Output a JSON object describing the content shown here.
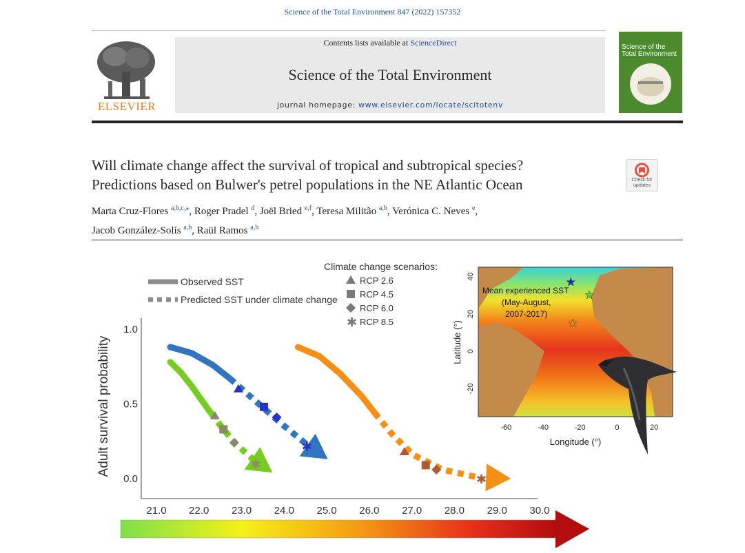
{
  "header": {
    "citation": "Science of the Total Environment 847 (2022) 157352",
    "contents_prefix": "Contents lists available at ",
    "contents_link": "ScienceDirect",
    "journal_title": "Science of the Total Environment",
    "homepage_prefix": "journal homepage: ",
    "homepage_url": "www.elsevier.com/locate/scitotenv",
    "publisher": "ELSEVIER",
    "cover_title": "Science of the Total Environment"
  },
  "article": {
    "title_line1": "Will climate change affect the survival of tropical and subtropical species?",
    "title_line2": "Predictions based on Bulwer's petrel populations in the NE Atlantic Ocean",
    "check_updates": "Check for updates",
    "authors": [
      {
        "name": "Marta Cruz-Flores",
        "aff": "a,b,c,⁎",
        "sep": ", "
      },
      {
        "name": "Roger Pradel",
        "aff": "d",
        "sep": ", "
      },
      {
        "name": "Joël Bried",
        "aff": "e,f",
        "sep": ", "
      },
      {
        "name": "Teresa Militão",
        "aff": "a,b",
        "sep": ", "
      },
      {
        "name": "Verónica C. Neves",
        "aff": "e",
        "sep": ","
      },
      {
        "name": "Jacob González-Solís",
        "aff": "a,b",
        "sep": ", "
      },
      {
        "name": "Raül Ramos",
        "aff": "a,b",
        "sep": ""
      }
    ]
  },
  "chart_data": [
    {
      "type": "line",
      "ylabel": "Adult survival probability",
      "xlabel": "",
      "xlim": [
        21.0,
        30.0
      ],
      "ylim": [
        0.0,
        1.0
      ],
      "x_ticks": [
        "21.0",
        "22.0",
        "23.0",
        "24.0",
        "25.0",
        "26.0",
        "27.0",
        "28.0",
        "29.0",
        "30.0"
      ],
      "y_ticks": [
        "0.0",
        "0.5",
        "1.0"
      ],
      "legend_line": {
        "observed": "Observed SST",
        "predicted": "Predicted SST under climate change"
      },
      "legend_title": "Climate change scenarios:",
      "scenarios": [
        "RCP 2.6",
        "RCP 4.5",
        "RCP 6.0",
        "RCP 8.5"
      ],
      "series": [
        {
          "color": "#77cc22",
          "observed": [
            [
              21.6,
              0.78
            ],
            [
              21.85,
              0.71
            ],
            [
              22.1,
              0.62
            ],
            [
              22.35,
              0.52
            ],
            [
              22.55,
              0.44
            ]
          ],
          "predicted": [
            [
              22.55,
              0.44
            ],
            [
              22.85,
              0.33
            ],
            [
              23.15,
              0.23
            ],
            [
              23.5,
              0.14
            ],
            [
              23.8,
              0.08
            ]
          ],
          "markers": {
            "RCP 2.6": [
              22.65,
              0.42
            ],
            "RCP 4.5": [
              22.85,
              0.33
            ],
            "RCP 6.0": [
              23.1,
              0.24
            ],
            "RCP 8.5": [
              23.6,
              0.1
            ]
          },
          "arrow_head": [
            24.0,
            0.04
          ]
        },
        {
          "color": "#2f75c0",
          "observed": [
            [
              21.6,
              0.88
            ],
            [
              22.1,
              0.84
            ],
            [
              22.6,
              0.76
            ],
            [
              23.0,
              0.67
            ]
          ],
          "predicted": [
            [
              23.0,
              0.67
            ],
            [
              23.6,
              0.52
            ],
            [
              24.2,
              0.37
            ],
            [
              24.8,
              0.23
            ]
          ],
          "markers": {
            "RCP 2.6": [
              23.2,
              0.6
            ],
            "RCP 4.5": [
              23.8,
              0.48
            ],
            "RCP 6.0": [
              24.1,
              0.41
            ],
            "RCP 8.5": [
              24.8,
              0.22
            ]
          },
          "arrow_head": [
            25.3,
            0.13
          ]
        },
        {
          "color": "#f59014",
          "observed": [
            [
              24.6,
              0.88
            ],
            [
              25.1,
              0.82
            ],
            [
              25.6,
              0.7
            ],
            [
              26.1,
              0.55
            ],
            [
              26.4,
              0.44
            ]
          ],
          "predicted": [
            [
              26.4,
              0.44
            ],
            [
              26.8,
              0.3
            ],
            [
              27.3,
              0.16
            ],
            [
              28.0,
              0.06
            ],
            [
              28.8,
              0.01
            ]
          ],
          "markers": {
            "RCP 2.6": [
              27.1,
              0.18
            ],
            "RCP 4.5": [
              27.6,
              0.09
            ],
            "RCP 6.0": [
              27.85,
              0.06
            ],
            "RCP 8.5": [
              28.9,
              0.0
            ]
          },
          "arrow_head": [
            29.6,
            0.0
          ]
        }
      ]
    },
    {
      "type": "map",
      "title": "Mean experienced SST",
      "subtitle": "(May-August,",
      "subtitle2": "2007-2017)",
      "xlabel": "Longitude (°)",
      "ylabel": "Latitude (°)",
      "xlim": [
        -75,
        30
      ],
      "ylim": [
        -35,
        45
      ],
      "x_ticks": [
        "-60",
        "-40",
        "-20",
        "0",
        "20"
      ],
      "y_ticks": [
        "40",
        "20",
        "0",
        "-20"
      ],
      "colonies": [
        {
          "lon": -25,
          "lat": 37,
          "color": "#1a2fc4"
        },
        {
          "lon": -15,
          "lat": 30,
          "color": "#5fcf2a"
        },
        {
          "lon": -24,
          "lat": 15,
          "color": "#e58a10"
        }
      ]
    }
  ],
  "colors": {
    "elsevier_orange": "#e9801c",
    "link_blue": "#1f4e9c",
    "land": "#c48a4a",
    "ocean_warm": "#e5341c"
  }
}
